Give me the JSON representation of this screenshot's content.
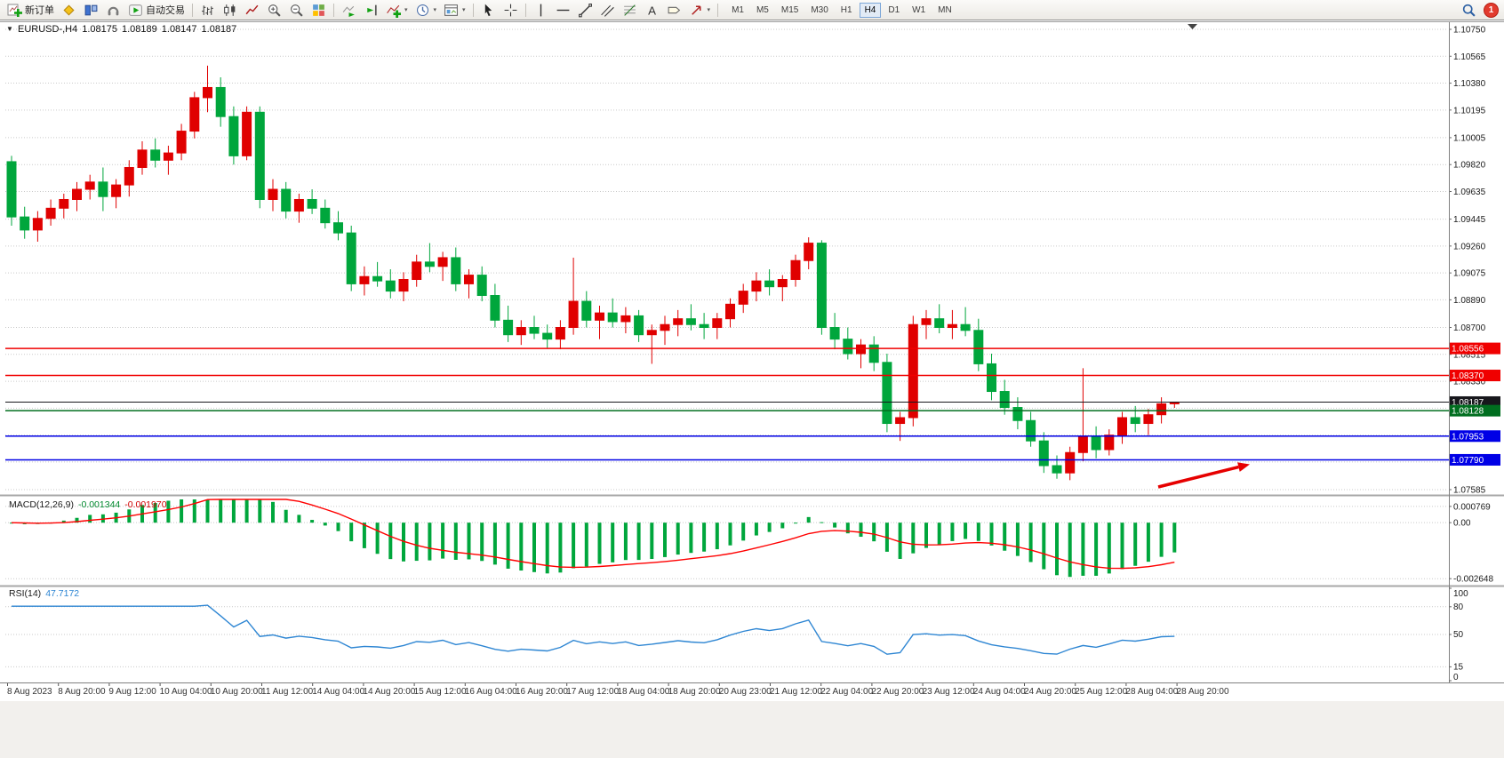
{
  "toolbar": {
    "new_order": "新订单",
    "auto_trading": "自动交易",
    "timeframes": [
      "M1",
      "M5",
      "M15",
      "M30",
      "H1",
      "H4",
      "D1",
      "W1",
      "MN"
    ],
    "active_timeframe": "H4",
    "notification_count": "1"
  },
  "chart": {
    "header": {
      "symbol": "EURUSD-,H4",
      "open": "1.08175",
      "high": "1.08189",
      "low": "1.08147",
      "close": "1.08187"
    },
    "price_axis_labels": [
      "1.10750",
      "1.10565",
      "1.10380",
      "1.10195",
      "1.10005",
      "1.09820",
      "1.09635",
      "1.09445",
      "1.09260",
      "1.09075",
      "1.08890",
      "1.08700",
      "1.08515",
      "1.08330",
      "1.08145",
      "1.07960",
      "1.07775",
      "1.07585"
    ],
    "price_tags": [
      {
        "label": "1.08556",
        "price": 1.08556,
        "color": "#f00000",
        "current": false
      },
      {
        "label": "1.08370",
        "price": 1.0837,
        "color": "#f00000",
        "current": false
      },
      {
        "label": "1.08187",
        "price": 1.08187,
        "color": "#17171c",
        "current": true
      },
      {
        "label": "1.08128",
        "price": 1.08128,
        "color": "#006e1f",
        "current": false
      },
      {
        "label": "1.07953",
        "price": 1.07953,
        "color": "#0000e6",
        "current": false
      },
      {
        "label": "1.07790",
        "price": 1.0779,
        "color": "#0000e6",
        "current": false
      }
    ],
    "time_axis_labels": [
      "8 Aug 2023",
      "8 Aug 20:00",
      "9 Aug 12:00",
      "10 Aug 04:00",
      "10 Aug 20:00",
      "11 Aug 12:00",
      "14 Aug 04:00",
      "14 Aug 20:00",
      "15 Aug 12:00",
      "16 Aug 04:00",
      "16 Aug 20:00",
      "17 Aug 12:00",
      "18 Aug 04:00",
      "18 Aug 20:00",
      "20 Aug 23:00",
      "21 Aug 12:00",
      "22 Aug 04:00",
      "22 Aug 20:00",
      "23 Aug 12:00",
      "24 Aug 04:00",
      "24 Aug 20:00",
      "25 Aug 12:00",
      "28 Aug 04:00",
      "28 Aug 20:00"
    ]
  },
  "indicators": {
    "macd": {
      "title": "MACD(12,26,9)",
      "main_value": "-0.001344",
      "signal_value": "-0.001970",
      "axis_labels": [
        "0.000769",
        "0.00",
        "-0.002648"
      ]
    },
    "rsi": {
      "title": "RSI(14)",
      "value": "47.7172",
      "axis_labels": [
        "100",
        "80",
        "50",
        "15",
        "0"
      ],
      "levels": [
        80,
        50,
        15
      ]
    }
  },
  "chart_data": {
    "type": "candlestick",
    "symbol": "EURUSD-",
    "timeframe": "H4",
    "price_range": [
      1.07585,
      1.1075
    ],
    "macd_params": [
      12,
      26,
      9
    ],
    "rsi_period": 14,
    "colors": {
      "bull": "#e00000",
      "bear": "#00a63c",
      "macd_histogram": "#00a63c",
      "macd_signal": "#ff0000",
      "rsi": "#2e86d3",
      "grid": "#c9c9c9",
      "axis_text": "#1a1a1a",
      "arrow_object": "#e60000"
    },
    "candles": [
      [
        1.0984,
        1.0988,
        1.094,
        1.0946
      ],
      [
        1.0946,
        1.0953,
        1.0931,
        1.0937
      ],
      [
        1.0937,
        1.095,
        1.0929,
        1.0945
      ],
      [
        1.0945,
        1.0958,
        1.094,
        1.0952
      ],
      [
        1.0952,
        1.0962,
        1.0945,
        1.0958
      ],
      [
        1.0958,
        1.097,
        1.095,
        1.0965
      ],
      [
        1.0965,
        1.0975,
        1.0958,
        1.097
      ],
      [
        1.097,
        1.098,
        1.095,
        1.096
      ],
      [
        1.096,
        1.0972,
        1.0952,
        1.0968
      ],
      [
        1.0968,
        1.0985,
        1.096,
        1.098
      ],
      [
        1.098,
        1.0998,
        1.0975,
        1.0992
      ],
      [
        1.0992,
        1.1,
        1.098,
        1.0985
      ],
      [
        1.0985,
        1.0995,
        1.0975,
        1.099
      ],
      [
        1.099,
        1.101,
        1.0985,
        1.1005
      ],
      [
        1.1005,
        1.1032,
        1.1,
        1.1028
      ],
      [
        1.1028,
        1.105,
        1.1018,
        1.1035
      ],
      [
        1.1035,
        1.1042,
        1.1008,
        1.1015
      ],
      [
        1.1015,
        1.1022,
        1.0982,
        1.0988
      ],
      [
        1.0988,
        1.1022,
        1.0985,
        1.1018
      ],
      [
        1.1018,
        1.1022,
        1.0952,
        1.0958
      ],
      [
        1.0958,
        1.0972,
        1.095,
        1.0965
      ],
      [
        1.0965,
        1.097,
        1.0945,
        1.095
      ],
      [
        1.095,
        1.0962,
        1.0942,
        1.0958
      ],
      [
        1.0958,
        1.0965,
        1.0948,
        1.0952
      ],
      [
        1.0952,
        1.0958,
        1.0938,
        1.0942
      ],
      [
        1.0942,
        1.095,
        1.093,
        1.0935
      ],
      [
        1.0935,
        1.094,
        1.0895,
        1.09
      ],
      [
        1.09,
        1.0912,
        1.0892,
        1.0905
      ],
      [
        1.0905,
        1.0915,
        1.0898,
        1.0902
      ],
      [
        1.0902,
        1.091,
        1.089,
        1.0895
      ],
      [
        1.0895,
        1.0908,
        1.0888,
        1.0903
      ],
      [
        1.0903,
        1.092,
        1.0898,
        1.0915
      ],
      [
        1.0915,
        1.0928,
        1.0908,
        1.0912
      ],
      [
        1.0912,
        1.0922,
        1.0902,
        1.0918
      ],
      [
        1.0918,
        1.0925,
        1.0895,
        1.09
      ],
      [
        1.09,
        1.091,
        1.089,
        1.0906
      ],
      [
        1.0906,
        1.0912,
        1.0888,
        1.0892
      ],
      [
        1.0892,
        1.09,
        1.087,
        1.0875
      ],
      [
        1.0875,
        1.0885,
        1.086,
        1.0865
      ],
      [
        1.0865,
        1.0875,
        1.0858,
        1.087
      ],
      [
        1.087,
        1.0878,
        1.0862,
        1.0866
      ],
      [
        1.0866,
        1.0872,
        1.0856,
        1.0862
      ],
      [
        1.0862,
        1.0875,
        1.0855,
        1.087
      ],
      [
        1.087,
        1.0918,
        1.0865,
        1.0888
      ],
      [
        1.0888,
        1.0895,
        1.087,
        1.0875
      ],
      [
        1.0875,
        1.0885,
        1.0862,
        1.088
      ],
      [
        1.088,
        1.089,
        1.087,
        1.0874
      ],
      [
        1.0874,
        1.0884,
        1.0866,
        1.0878
      ],
      [
        1.0878,
        1.0882,
        1.086,
        1.0865
      ],
      [
        1.0865,
        1.0872,
        1.0845,
        1.0868
      ],
      [
        1.0868,
        1.0878,
        1.0858,
        1.0872
      ],
      [
        1.0872,
        1.0882,
        1.0864,
        1.0876
      ],
      [
        1.0876,
        1.0886,
        1.0868,
        1.0872
      ],
      [
        1.0872,
        1.088,
        1.0862,
        1.087
      ],
      [
        1.087,
        1.088,
        1.0862,
        1.0876
      ],
      [
        1.0876,
        1.089,
        1.087,
        1.0886
      ],
      [
        1.0886,
        1.09,
        1.088,
        1.0895
      ],
      [
        1.0895,
        1.0908,
        1.0888,
        1.0902
      ],
      [
        1.0902,
        1.091,
        1.0892,
        1.0898
      ],
      [
        1.0898,
        1.0906,
        1.0888,
        1.0903
      ],
      [
        1.0903,
        1.092,
        1.0898,
        1.0916
      ],
      [
        1.0916,
        1.0932,
        1.091,
        1.0928
      ],
      [
        1.0928,
        1.093,
        1.0865,
        1.087
      ],
      [
        1.087,
        1.088,
        1.0855,
        1.0862
      ],
      [
        1.0862,
        1.087,
        1.0848,
        1.0852
      ],
      [
        1.0852,
        1.0862,
        1.0842,
        1.0858
      ],
      [
        1.0858,
        1.0864,
        1.084,
        1.0846
      ],
      [
        1.0846,
        1.0852,
        1.0798,
        1.0804
      ],
      [
        1.0804,
        1.0812,
        1.0792,
        1.0808
      ],
      [
        1.0808,
        1.0878,
        1.0802,
        1.0872
      ],
      [
        1.0872,
        1.0882,
        1.0862,
        1.0876
      ],
      [
        1.0876,
        1.0886,
        1.0866,
        1.087
      ],
      [
        1.087,
        1.0882,
        1.0862,
        1.0872
      ],
      [
        1.0872,
        1.0884,
        1.0864,
        1.0868
      ],
      [
        1.0868,
        1.0876,
        1.084,
        1.0845
      ],
      [
        1.0845,
        1.0852,
        1.082,
        1.0826
      ],
      [
        1.0826,
        1.0834,
        1.081,
        1.0815
      ],
      [
        1.0815,
        1.0822,
        1.08,
        1.0806
      ],
      [
        1.0806,
        1.0812,
        1.0788,
        1.0792
      ],
      [
        1.0792,
        1.0798,
        1.077,
        1.0775
      ],
      [
        1.0775,
        1.0782,
        1.0766,
        1.077
      ],
      [
        1.077,
        1.0788,
        1.0765,
        1.0784
      ],
      [
        1.0784,
        1.0842,
        1.0778,
        1.0795
      ],
      [
        1.0795,
        1.0802,
        1.078,
        1.0786
      ],
      [
        1.0786,
        1.08,
        1.0782,
        1.0796
      ],
      [
        1.0796,
        1.0812,
        1.079,
        1.0808
      ],
      [
        1.0808,
        1.0816,
        1.0798,
        1.0804
      ],
      [
        1.0804,
        1.0814,
        1.0796,
        1.081
      ],
      [
        1.081,
        1.0822,
        1.0804,
        1.08175
      ],
      [
        1.08175,
        1.08189,
        1.08147,
        1.08187
      ]
    ]
  }
}
